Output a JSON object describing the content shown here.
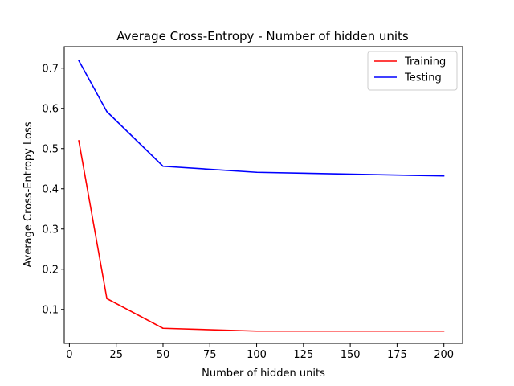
{
  "chart_data": {
    "type": "line",
    "title": "Average Cross-Entropy - Number of hidden units",
    "xlabel": "Number of hidden units",
    "ylabel": "Average Cross-Entropy Loss",
    "x": [
      5,
      20,
      50,
      100,
      200
    ],
    "xlim": [
      -2.75,
      210
    ],
    "ylim": [
      0.0155,
      0.7535
    ],
    "xticks": [
      0,
      25,
      50,
      75,
      100,
      125,
      150,
      175,
      200
    ],
    "yticks": [
      0.1,
      0.2,
      0.3,
      0.4,
      0.5,
      0.6,
      0.7
    ],
    "grid": false,
    "legend_position": "top-right",
    "series": [
      {
        "name": "Training",
        "color": "#ff0000",
        "values": [
          0.52,
          0.127,
          0.053,
          0.046,
          0.046
        ]
      },
      {
        "name": "Testing",
        "color": "#0000ff",
        "values": [
          0.719,
          0.592,
          0.456,
          0.441,
          0.432
        ]
      }
    ]
  }
}
